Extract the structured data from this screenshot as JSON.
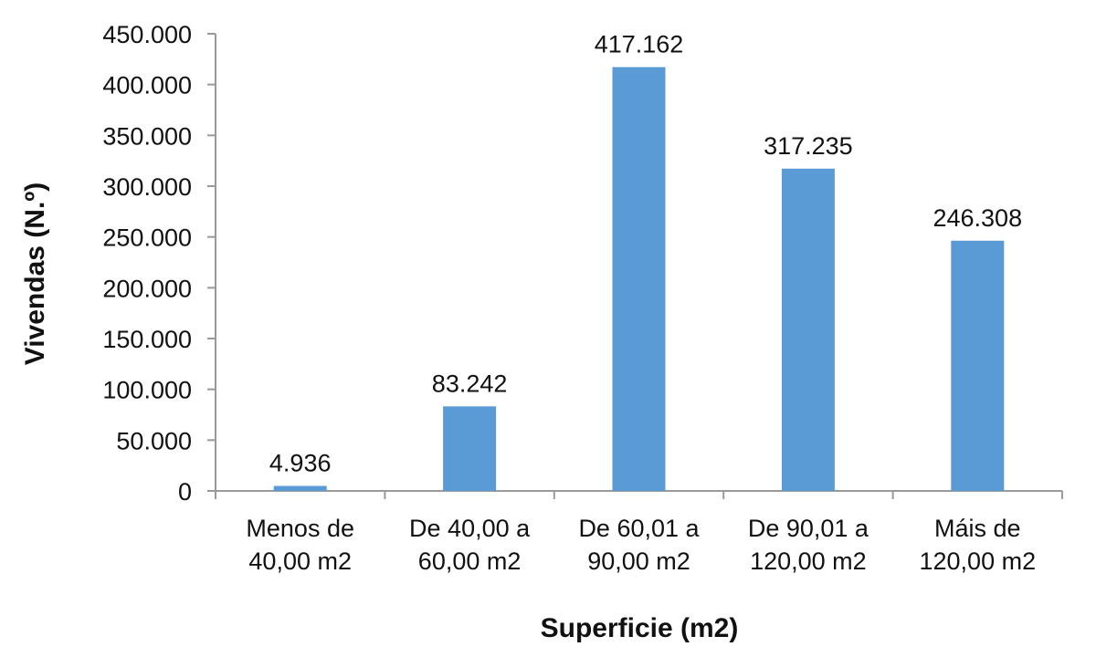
{
  "chart_data": {
    "type": "bar",
    "title": "",
    "xlabel": "Superficie (m2)",
    "ylabel": "Vivendas (N.º)",
    "categories": [
      [
        "Menos de",
        "40,00 m2"
      ],
      [
        "De 40,00 a",
        "60,00 m2"
      ],
      [
        "De 60,01 a",
        "90,00 m2"
      ],
      [
        "De 90,01 a",
        "120,00 m2"
      ],
      [
        "Máis de",
        "120,00 m2"
      ]
    ],
    "values": [
      4936,
      83242,
      417162,
      317235,
      246308
    ],
    "data_labels": [
      "4.936",
      "83.242",
      "417.162",
      "317.235",
      "246.308"
    ],
    "ylim": [
      0,
      450000
    ],
    "yticks": [
      0,
      50000,
      100000,
      150000,
      200000,
      250000,
      300000,
      350000,
      400000,
      450000
    ],
    "ytick_labels": [
      "0",
      "50.000",
      "100.000",
      "150.000",
      "200.000",
      "250.000",
      "300.000",
      "350.000",
      "400.000",
      "450.000"
    ],
    "grid": false,
    "legend": "none",
    "bar_color": "#5B9BD5",
    "axis_color": "#9A9A9A"
  }
}
